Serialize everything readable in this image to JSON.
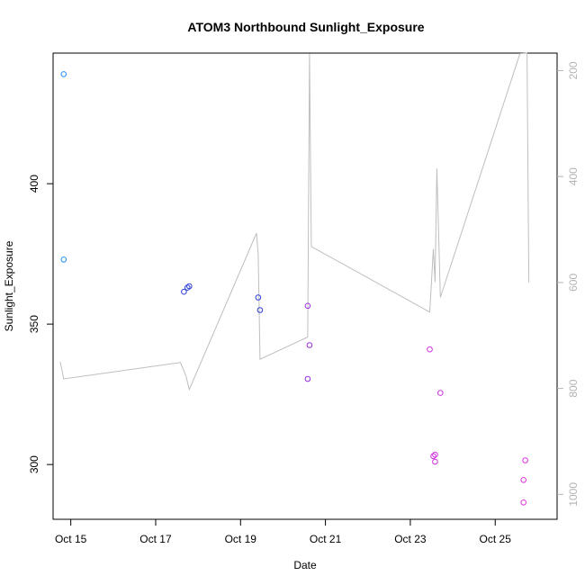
{
  "chart_data": {
    "type": "scatter",
    "title": "ATOM3 Northbound Sunlight_Exposure",
    "xlabel": "Date",
    "ylabel": "Sunlight_Exposure",
    "x_is_date": true,
    "x_ticks": [
      {
        "value": "2023-10-15",
        "label": "Oct 15"
      },
      {
        "value": "2023-10-17",
        "label": "Oct 17"
      },
      {
        "value": "2023-10-19",
        "label": "Oct 19"
      },
      {
        "value": "2023-10-21",
        "label": "Oct 21"
      },
      {
        "value": "2023-10-23",
        "label": "Oct 23"
      },
      {
        "value": "2023-10-25",
        "label": "Oct 25"
      }
    ],
    "xlim": [
      "2023-10-14T14:00",
      "2023-10-26T11:00"
    ],
    "y_ticks": [
      300,
      350,
      400
    ],
    "ylim": [
      280.5,
      446.5
    ],
    "y2_ticks": [
      200,
      400,
      600,
      800,
      1000
    ],
    "y2lim": [
      1047,
      167
    ],
    "y2_color": "#b3b3b3",
    "grid": false,
    "points": [
      {
        "x": "2023-10-14T20:00",
        "y": 439,
        "color": "#1e90ff"
      },
      {
        "x": "2023-10-14T20:00",
        "y": 373,
        "color": "#1e90ff"
      },
      {
        "x": "2023-10-17T16:00",
        "y": 361.5,
        "color": "#2f3fd9"
      },
      {
        "x": "2023-10-17T18:00",
        "y": 363,
        "color": "#2f3fd9"
      },
      {
        "x": "2023-10-17T19:00",
        "y": 363.5,
        "color": "#2f3fd9"
      },
      {
        "x": "2023-10-19T10:00",
        "y": 359.5,
        "color": "#2f3fd9"
      },
      {
        "x": "2023-10-19T11:00",
        "y": 355,
        "color": "#2f3fd9"
      },
      {
        "x": "2023-10-20T14:00",
        "y": 356.5,
        "color": "#9b30e0"
      },
      {
        "x": "2023-10-20T15:00",
        "y": 342.5,
        "color": "#9b30e0"
      },
      {
        "x": "2023-10-20T14:00",
        "y": 330.5,
        "color": "#9b30e0"
      },
      {
        "x": "2023-10-23T11:00",
        "y": 341,
        "color": "#d030e0"
      },
      {
        "x": "2023-10-23T17:00",
        "y": 325.5,
        "color": "#d030e0"
      },
      {
        "x": "2023-10-23T13:00",
        "y": 303,
        "color": "#d030e0"
      },
      {
        "x": "2023-10-23T14:00",
        "y": 303.5,
        "color": "#d030e0"
      },
      {
        "x": "2023-10-23T14:00",
        "y": 301,
        "color": "#d030e0"
      },
      {
        "x": "2023-10-25T17:00",
        "y": 301.5,
        "color": "#e030e0"
      },
      {
        "x": "2023-10-25T16:00",
        "y": 294.5,
        "color": "#e030e0"
      },
      {
        "x": "2023-10-25T16:00",
        "y": 286.5,
        "color": "#e030e0"
      }
    ],
    "line_series": {
      "axis": "right",
      "color": "#bebebe",
      "points": [
        {
          "x": "2023-10-14T18:00",
          "y": 750
        },
        {
          "x": "2023-10-14T20:00",
          "y": 782
        },
        {
          "x": "2023-10-17T14:00",
          "y": 751
        },
        {
          "x": "2023-10-17T17:00",
          "y": 775
        },
        {
          "x": "2023-10-17T19:00",
          "y": 802
        },
        {
          "x": "2023-10-19T09:00",
          "y": 507
        },
        {
          "x": "2023-10-19T10:00",
          "y": 546
        },
        {
          "x": "2023-10-19T11:00",
          "y": 745
        },
        {
          "x": "2023-10-20T14:00",
          "y": 703
        },
        {
          "x": "2023-10-20T15:00",
          "y": 168
        },
        {
          "x": "2023-10-20T16:00",
          "y": 532
        },
        {
          "x": "2023-10-23T11:00",
          "y": 656
        },
        {
          "x": "2023-10-23T13:00",
          "y": 537
        },
        {
          "x": "2023-10-23T14:00",
          "y": 599
        },
        {
          "x": "2023-10-23T15:00",
          "y": 385
        },
        {
          "x": "2023-10-23T17:00",
          "y": 628
        },
        {
          "x": "2023-10-25T14:00",
          "y": 168
        },
        {
          "x": "2023-10-25T18:00",
          "y": 167
        },
        {
          "x": "2023-10-25T19:00",
          "y": 600
        }
      ]
    }
  }
}
